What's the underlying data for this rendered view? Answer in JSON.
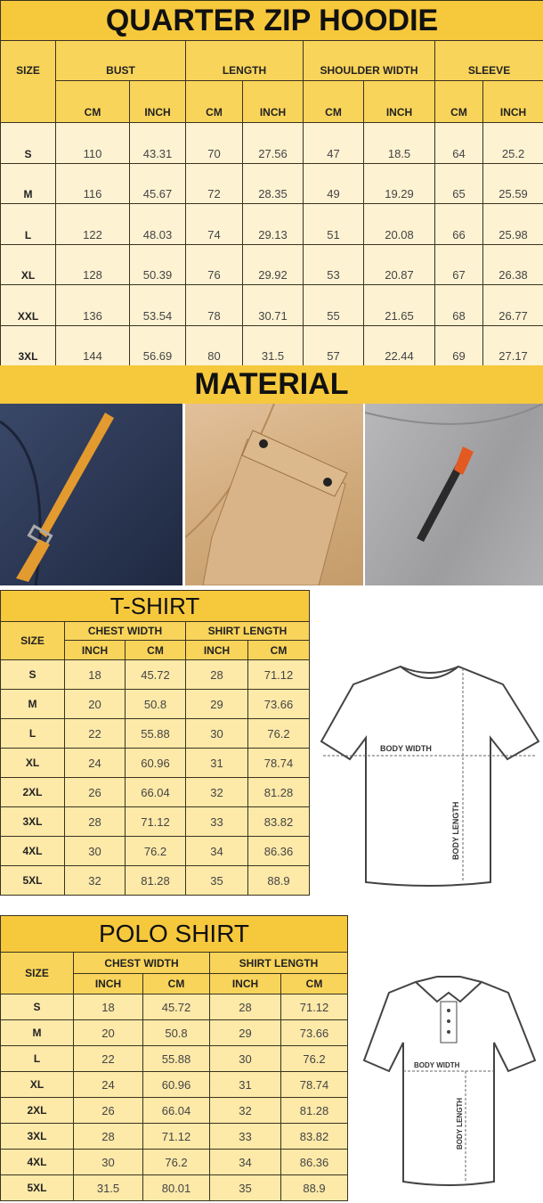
{
  "hoodie": {
    "title": "QUARTER ZIP HOODIE",
    "size_label": "SIZE",
    "groups": [
      "BUST",
      "LENGTH",
      "SHOULDER WIDTH",
      "SLEEVE"
    ],
    "units": [
      "CM",
      "INCH",
      "CM",
      "INCH",
      "CM",
      "INCH",
      "CM",
      "INCH"
    ],
    "rows": [
      [
        "S",
        "110",
        "43.31",
        "70",
        "27.56",
        "47",
        "18.5",
        "64",
        "25.2"
      ],
      [
        "M",
        "116",
        "45.67",
        "72",
        "28.35",
        "49",
        "19.29",
        "65",
        "25.59"
      ],
      [
        "L",
        "122",
        "48.03",
        "74",
        "29.13",
        "51",
        "20.08",
        "66",
        "25.98"
      ],
      [
        "XL",
        "128",
        "50.39",
        "76",
        "29.92",
        "53",
        "20.87",
        "67",
        "26.38"
      ],
      [
        "XXL",
        "136",
        "53.54",
        "78",
        "30.71",
        "55",
        "21.65",
        "68",
        "26.77"
      ],
      [
        "3XL",
        "144",
        "56.69",
        "80",
        "31.5",
        "57",
        "22.44",
        "69",
        "27.17"
      ]
    ]
  },
  "material": {
    "title": "MATERIAL",
    "photos": [
      {
        "name": "navy-fabric-with-orange-zip-pull",
        "color": "#2f3c5c"
      },
      {
        "name": "khaki-fabric-with-flap-pocket",
        "color": "#d8b48c"
      },
      {
        "name": "gray-fabric-with-zipper",
        "color": "#a9a9ab"
      }
    ]
  },
  "tshirt": {
    "title": "T-SHIRT",
    "size_label": "SIZE",
    "groups": [
      "CHEST WIDTH",
      "SHIRT LENGTH"
    ],
    "units": [
      "INCH",
      "CM",
      "INCH",
      "CM"
    ],
    "rows": [
      [
        "S",
        "18",
        "45.72",
        "28",
        "71.12"
      ],
      [
        "M",
        "20",
        "50.8",
        "29",
        "73.66"
      ],
      [
        "L",
        "22",
        "55.88",
        "30",
        "76.2"
      ],
      [
        "XL",
        "24",
        "60.96",
        "31",
        "78.74"
      ],
      [
        "2XL",
        "26",
        "66.04",
        "32",
        "81.28"
      ],
      [
        "3XL",
        "28",
        "71.12",
        "33",
        "83.82"
      ],
      [
        "4XL",
        "30",
        "76.2",
        "34",
        "86.36"
      ],
      [
        "5XL",
        "32",
        "81.28",
        "35",
        "88.9"
      ]
    ],
    "diagram": {
      "width_label": "BODY WIDTH",
      "length_label": "BODY LENGTH"
    }
  },
  "polo": {
    "title": "POLO SHIRT",
    "size_label": "SIZE",
    "groups": [
      "CHEST WIDTH",
      "SHIRT LENGTH"
    ],
    "units": [
      "INCH",
      "CM",
      "INCH",
      "CM"
    ],
    "rows": [
      [
        "S",
        "18",
        "45.72",
        "28",
        "71.12"
      ],
      [
        "M",
        "20",
        "50.8",
        "29",
        "73.66"
      ],
      [
        "L",
        "22",
        "55.88",
        "30",
        "76.2"
      ],
      [
        "XL",
        "24",
        "60.96",
        "31",
        "78.74"
      ],
      [
        "2XL",
        "26",
        "66.04",
        "32",
        "81.28"
      ],
      [
        "3XL",
        "28",
        "71.12",
        "33",
        "83.82"
      ],
      [
        "4XL",
        "30",
        "76.2",
        "34",
        "86.36"
      ],
      [
        "5XL",
        "31.5",
        "80.01",
        "35",
        "88.9"
      ]
    ],
    "diagram": {
      "width_label": "BODY WIDTH",
      "length_label": "BODY LENGTH"
    }
  },
  "colors": {
    "title_yellow": "#f6c83c",
    "header_yellow": "#f9d45a",
    "cell_cream": "#fdf2d2",
    "cell_yellow": "#fde9a8"
  }
}
